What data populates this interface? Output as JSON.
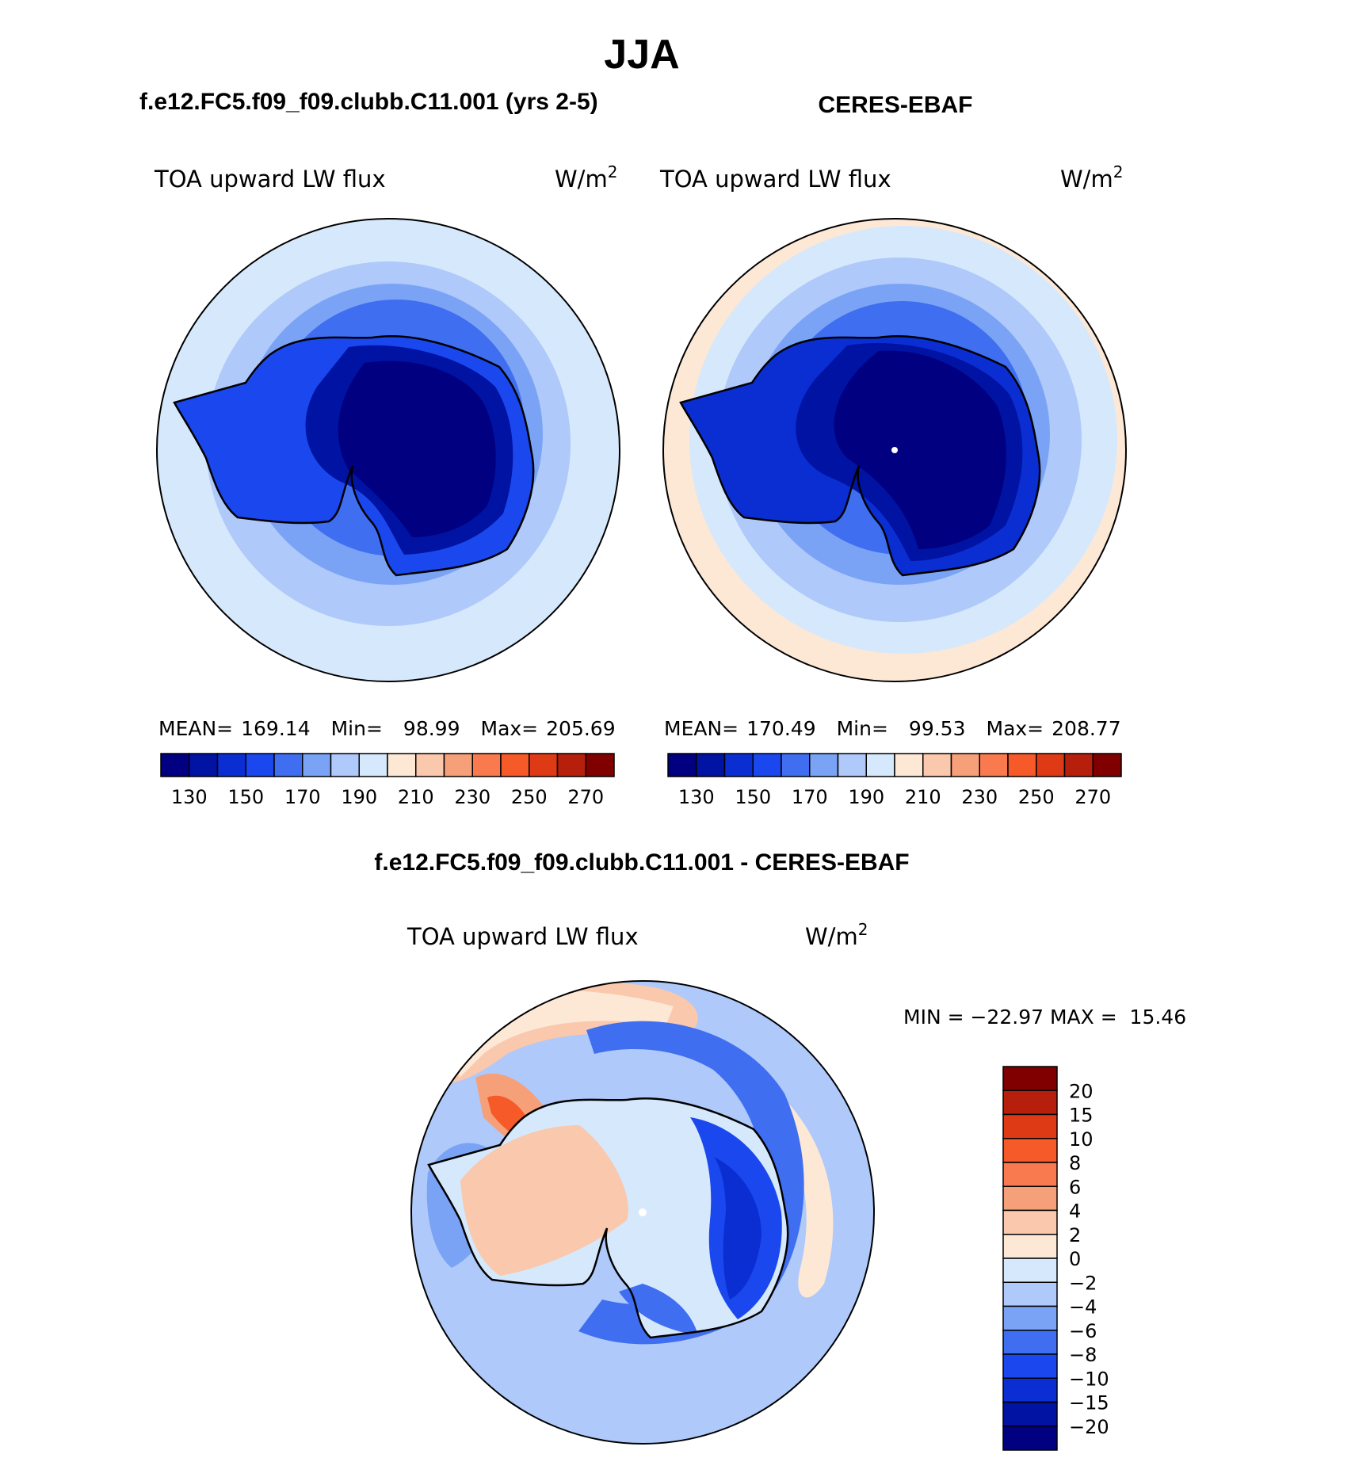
{
  "figure": {
    "season": "JJA",
    "model_title": "f.e12.FC5.f09_f09.clubb.C11.001 (yrs 2-5)",
    "obs_title": "CERES-EBAF",
    "diff_title": "f.e12.FC5.f09_f09.clubb.C11.001 - CERES-EBAF"
  },
  "colors": {
    "top_scale": [
      "#000080",
      "#0013a3",
      "#0a2ed2",
      "#1a48ee",
      "#3f6ef0",
      "#7ba3f5",
      "#aec9fa",
      "#d6e8fb",
      "#fde8d6",
      "#fac8ac",
      "#f6a07a",
      "#f87a4e",
      "#f55a28",
      "#df3a16",
      "#b51f0c",
      "#800000"
    ],
    "diff_scale": [
      "#000080",
      "#0013a3",
      "#0a2ed2",
      "#1a48ee",
      "#3f6ef0",
      "#7ba3f5",
      "#aec9fa",
      "#d6e8fb",
      "#fde8d6",
      "#fac8ac",
      "#f6a07a",
      "#f87a4e",
      "#f55a28",
      "#df3a16",
      "#b51f0c",
      "#800000"
    ],
    "land_outline": "#000000"
  },
  "chart_data": [
    {
      "type": "heatmap",
      "projection": "south polar stereographic",
      "title": "TOA upward LW flux",
      "units": "W/m2",
      "stats": {
        "mean_label": "MEAN=",
        "mean": "169.14",
        "min_label": "Min=",
        "min": "98.99",
        "max_label": "Max=",
        "max": "205.69"
      },
      "contour_levels": [
        130,
        140,
        150,
        160,
        170,
        180,
        190,
        200,
        210,
        220,
        230,
        240,
        250,
        260,
        270
      ],
      "colorbar_tick_labels": [
        "130",
        "150",
        "170",
        "190",
        "210",
        "230",
        "250",
        "270"
      ],
      "colorbar_orientation": "horizontal"
    },
    {
      "type": "heatmap",
      "projection": "south polar stereographic",
      "title": "TOA upward LW flux",
      "units": "W/m2",
      "stats": {
        "mean_label": "MEAN=",
        "mean": "170.49",
        "min_label": "Min=",
        "min": "99.53",
        "max_label": "Max=",
        "max": "208.77"
      },
      "contour_levels": [
        130,
        140,
        150,
        160,
        170,
        180,
        190,
        200,
        210,
        220,
        230,
        240,
        250,
        260,
        270
      ],
      "colorbar_tick_labels": [
        "130",
        "150",
        "170",
        "190",
        "210",
        "230",
        "250",
        "270"
      ],
      "colorbar_orientation": "horizontal"
    },
    {
      "type": "heatmap",
      "projection": "south polar stereographic",
      "title": "TOA upward LW flux",
      "units": "W/m2",
      "stats_text": "MIN = −22.97 MAX =  15.46",
      "contour_levels": [
        -20,
        -15,
        -10,
        -8,
        -6,
        -4,
        -2,
        0,
        2,
        4,
        6,
        8,
        10,
        15,
        20
      ],
      "colorbar_tick_labels": [
        "20",
        "15",
        "10",
        "8",
        "6",
        "4",
        "2",
        "0",
        "−2",
        "−4",
        "−6",
        "−8",
        "−10",
        "−15",
        "−20"
      ],
      "colorbar_orientation": "vertical"
    }
  ]
}
